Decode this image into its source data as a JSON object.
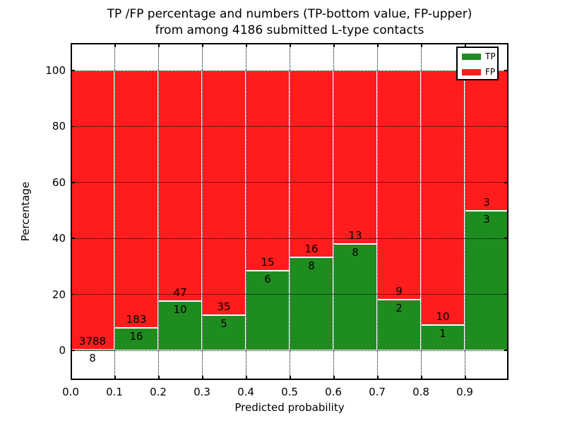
{
  "title": {
    "line1": "TP /FP percentage and numbers (TP-bottom value, FP-upper)",
    "line2": "from among 4186 submitted L-type contacts"
  },
  "axes": {
    "x_label": "Predicted probability",
    "y_label": "Percentage",
    "x_tick_labels": [
      "0.0",
      "0.1",
      "0.2",
      "0.3",
      "0.4",
      "0.5",
      "0.6",
      "0.7",
      "0.8",
      "0.9"
    ],
    "y_tick_labels": [
      "0",
      "20",
      "40",
      "60",
      "80",
      "100"
    ],
    "y_tick_values": [
      0,
      20,
      40,
      60,
      80,
      100
    ]
  },
  "legend": {
    "position": "upper right",
    "items": [
      {
        "label": "TP",
        "color": "#1f8c1f"
      },
      {
        "label": "FP",
        "color": "#ff1c1c"
      }
    ]
  },
  "chart_data": {
    "type": "bar",
    "stacked": true,
    "normalized_to_percent": true,
    "title": "TP /FP percentage and numbers (TP-bottom value, FP-upper) from among 4186 submitted L-type contacts",
    "xlabel": "Predicted probability",
    "ylabel": "Percentage",
    "xlim": [
      0.0,
      1.0
    ],
    "ylim_visible": [
      -11,
      110
    ],
    "grid": true,
    "grid_style": "dotted",
    "total_contacts": 4186,
    "bin_edges": [
      0.0,
      0.1,
      0.2,
      0.3,
      0.4,
      0.5,
      0.6,
      0.7,
      0.8,
      0.9,
      1.0
    ],
    "series": [
      {
        "name": "TP",
        "color": "#1f8c1f",
        "counts": [
          8,
          16,
          10,
          5,
          6,
          8,
          8,
          2,
          1,
          3
        ]
      },
      {
        "name": "FP",
        "color": "#ff1c1c",
        "counts": [
          3788,
          183,
          47,
          35,
          15,
          16,
          13,
          9,
          10,
          3
        ]
      }
    ],
    "tp_percent": [
      0.21,
      8.04,
      17.54,
      12.5,
      28.57,
      33.33,
      38.1,
      18.18,
      9.09,
      50.0
    ],
    "fp_percent": [
      99.79,
      91.96,
      82.46,
      87.5,
      71.43,
      66.67,
      61.9,
      81.82,
      90.91,
      50.0
    ],
    "bar_edge_color": "#ffffff",
    "label_color": "#000000"
  }
}
